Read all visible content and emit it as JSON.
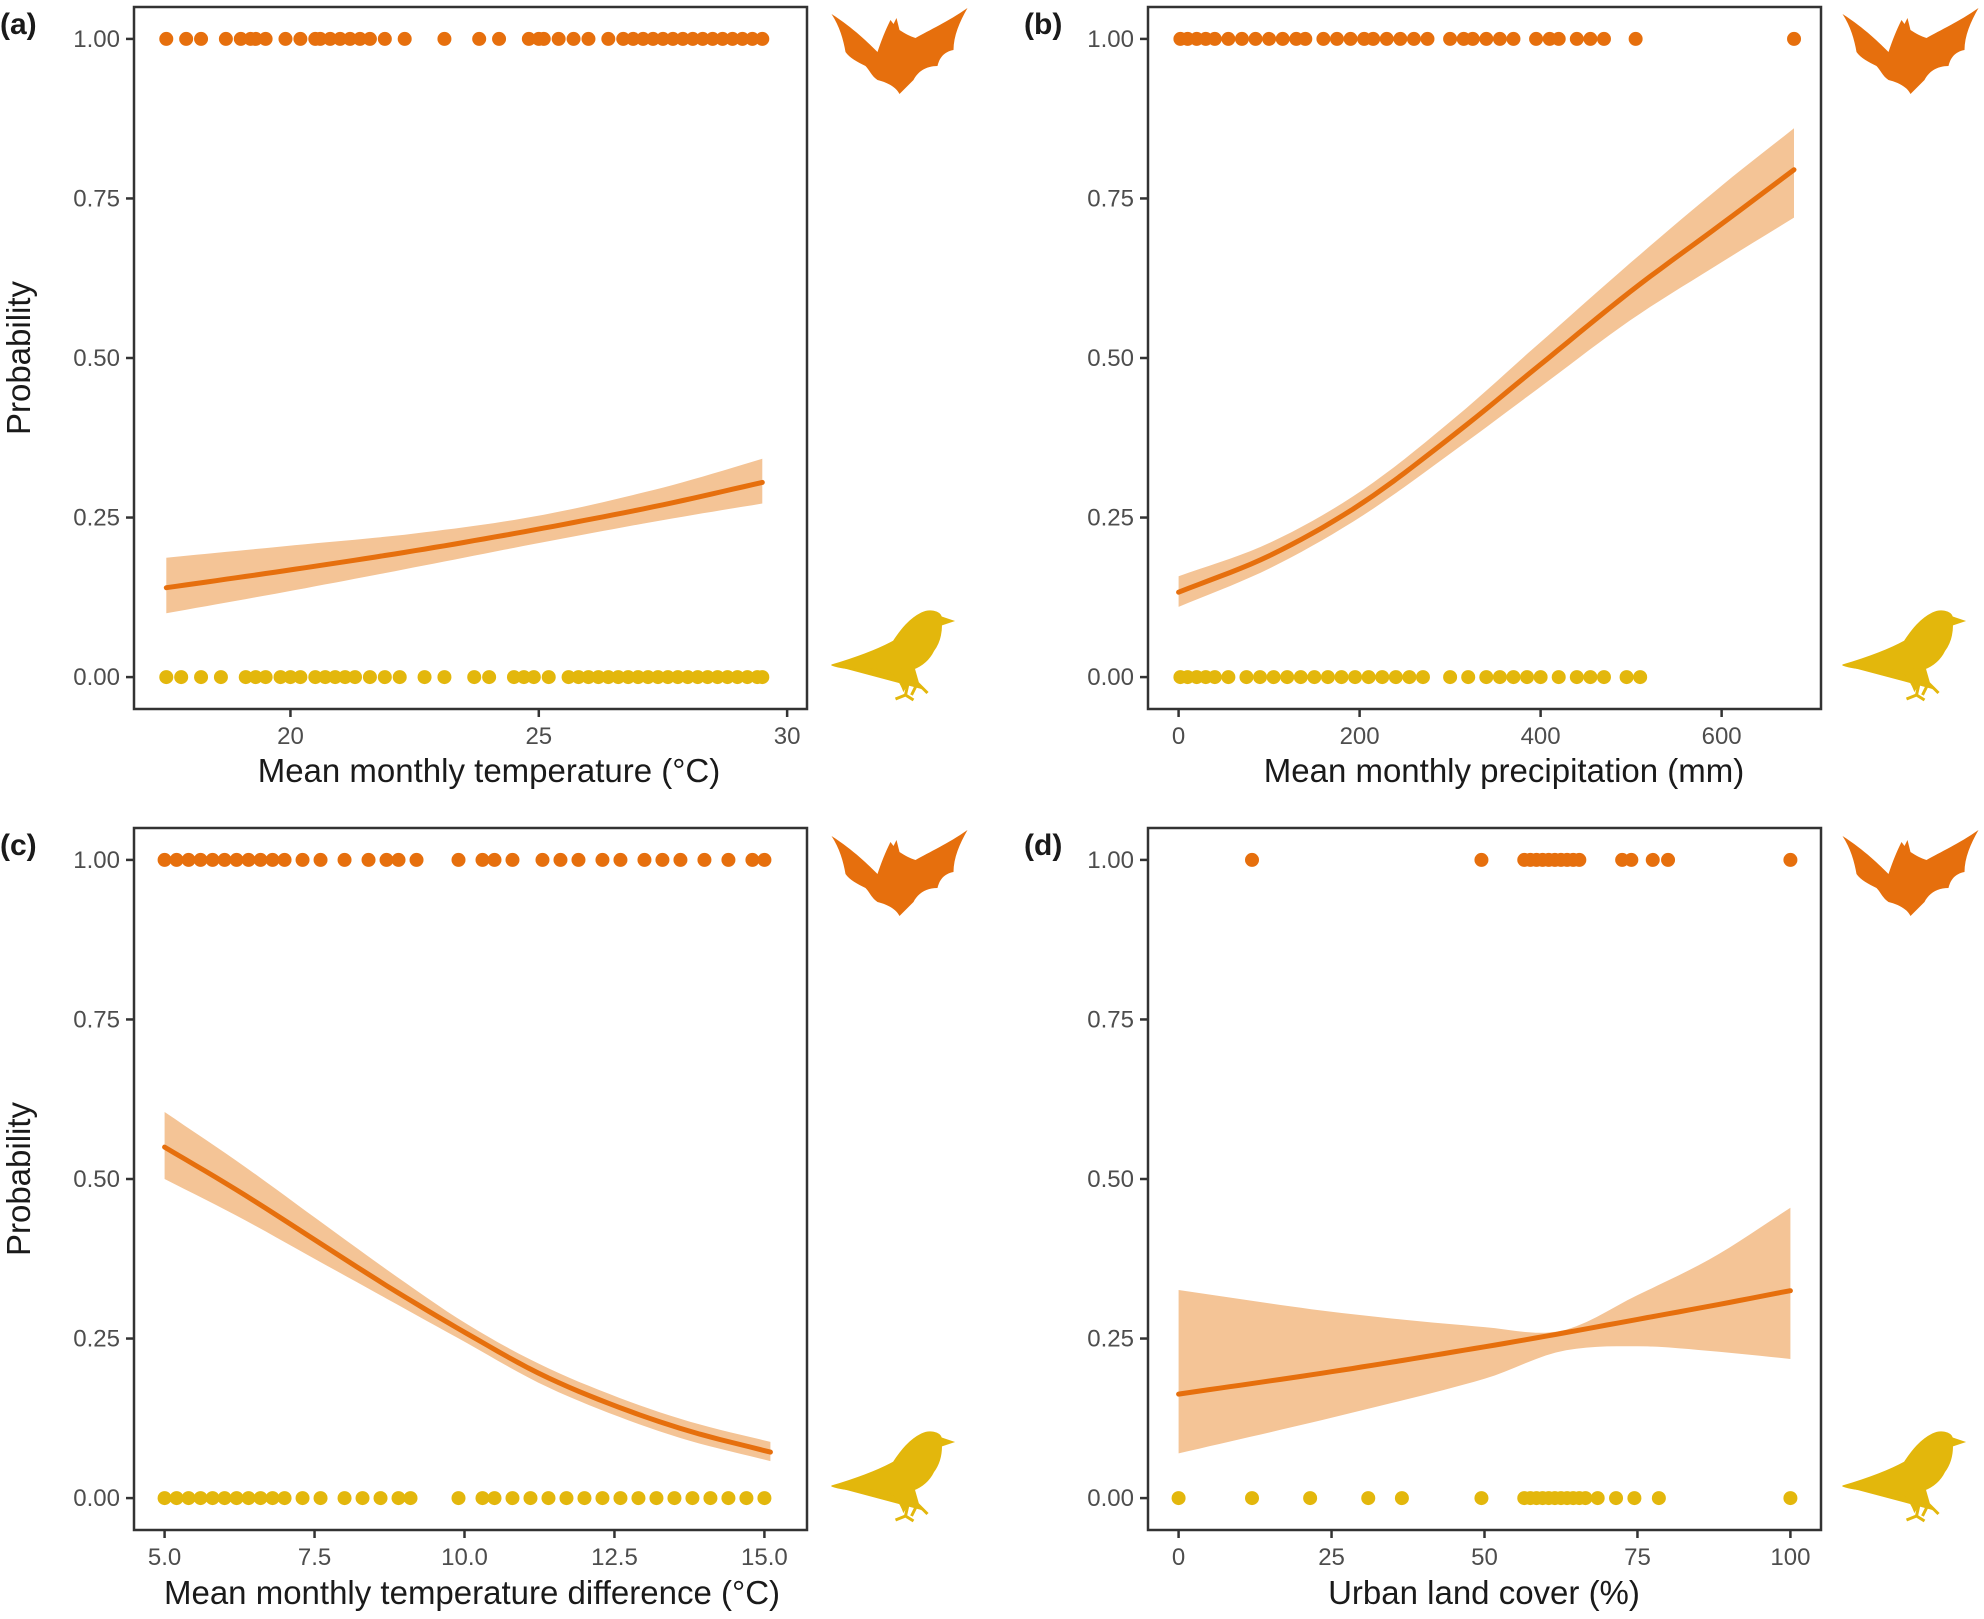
{
  "colors": {
    "bat": "#e66f0d",
    "bird": "#e3b70c",
    "ribbon": "#f4c496",
    "curve": "#e66f0d",
    "frame": "#333333"
  },
  "icons": {
    "top": "bat-silhouette-icon",
    "bottom": "bird-silhouette-icon"
  },
  "chart_data": [
    {
      "type": "scatter",
      "panel": "(a)",
      "xlabel": "Mean monthly temperature (°C)",
      "ylabel": "Probability",
      "xlim": [
        16.85,
        30.4
      ],
      "ylim": [
        -0.05,
        1.05
      ],
      "xticks": [
        20,
        25,
        30
      ],
      "xtick_labels": [
        "20",
        "25",
        "30"
      ],
      "yticks": [
        0,
        0.25,
        0.5,
        0.75,
        1
      ],
      "ytick_labels": [
        "0.00",
        "0.25",
        "0.50",
        "0.75",
        "1.00"
      ],
      "grid": false,
      "series": [
        {
          "values_y": 1,
          "x": [
            17.5,
            17.9,
            18.2,
            18.7,
            19.0,
            19.2,
            19.3,
            19.5,
            19.9,
            20.2,
            20.5,
            20.6,
            20.8,
            21.0,
            21.2,
            21.4,
            21.6,
            21.9,
            22.3,
            23.1,
            23.8,
            24.2,
            24.8,
            25.0,
            25.1,
            25.4,
            25.7,
            26.0,
            26.4,
            26.7,
            26.9,
            27.1,
            27.3,
            27.5,
            27.7,
            27.9,
            28.1,
            28.3,
            28.5,
            28.7,
            28.9,
            29.1,
            29.3,
            29.5
          ]
        },
        {
          "values_y": 0,
          "x": [
            17.5,
            17.8,
            18.2,
            18.6,
            19.1,
            19.3,
            19.5,
            19.8,
            20.0,
            20.2,
            20.5,
            20.7,
            20.9,
            21.1,
            21.3,
            21.6,
            21.9,
            22.2,
            22.7,
            23.1,
            23.7,
            24.0,
            24.5,
            24.7,
            24.9,
            25.2,
            25.6,
            25.8,
            26.0,
            26.2,
            26.4,
            26.6,
            26.8,
            27.0,
            27.2,
            27.4,
            27.6,
            27.8,
            28.0,
            28.2,
            28.4,
            28.6,
            28.8,
            29.0,
            29.2,
            29.4,
            29.5
          ]
        }
      ],
      "fit": {
        "x": [
          17.5,
          20,
          22.5,
          25,
          27.5,
          29.5
        ],
        "y": [
          0.14,
          0.168,
          0.198,
          0.232,
          0.27,
          0.305
        ],
        "lower": [
          0.1,
          0.135,
          0.172,
          0.21,
          0.246,
          0.272
        ],
        "upper": [
          0.187,
          0.206,
          0.225,
          0.253,
          0.297,
          0.342
        ]
      }
    },
    {
      "type": "scatter",
      "panel": "(b)",
      "xlabel": "Mean monthly precipitation (mm)",
      "ylabel": "",
      "xlim": [
        -33.8,
        709.8
      ],
      "ylim": [
        -0.05,
        1.05
      ],
      "xticks": [
        0,
        200,
        400,
        600
      ],
      "xtick_labels": [
        "0",
        "200",
        "400",
        "600"
      ],
      "yticks": [
        0,
        0.25,
        0.5,
        0.75,
        1
      ],
      "ytick_labels": [
        "0.00",
        "0.25",
        "0.50",
        "0.75",
        "1.00"
      ],
      "grid": false,
      "series": [
        {
          "values_y": 1,
          "x": [
            2,
            10,
            20,
            30,
            40,
            55,
            70,
            85,
            100,
            115,
            130,
            140,
            160,
            175,
            190,
            205,
            215,
            230,
            245,
            260,
            275,
            300,
            315,
            325,
            340,
            355,
            370,
            395,
            410,
            420,
            440,
            455,
            470,
            505,
            680
          ]
        },
        {
          "values_y": 0,
          "x": [
            2,
            10,
            20,
            30,
            40,
            55,
            75,
            90,
            105,
            120,
            135,
            150,
            165,
            180,
            195,
            210,
            225,
            240,
            255,
            270,
            300,
            320,
            340,
            355,
            370,
            385,
            400,
            420,
            440,
            455,
            470,
            495,
            510
          ]
        }
      ],
      "fit": {
        "x": [
          0,
          100,
          200,
          300,
          400,
          500,
          600,
          680
        ],
        "y": [
          0.133,
          0.19,
          0.27,
          0.375,
          0.49,
          0.605,
          0.71,
          0.795
        ],
        "lower": [
          0.11,
          0.17,
          0.25,
          0.35,
          0.455,
          0.56,
          0.65,
          0.72
        ],
        "upper": [
          0.158,
          0.21,
          0.29,
          0.4,
          0.525,
          0.65,
          0.77,
          0.86
        ]
      }
    },
    {
      "type": "scatter",
      "panel": "(c)",
      "xlabel": "Mean monthly temperature difference (°C)",
      "ylabel": "Probability",
      "xlim": [
        4.49,
        15.71
      ],
      "ylim": [
        -0.05,
        1.05
      ],
      "xticks": [
        5,
        7.5,
        10,
        12.5,
        15
      ],
      "xtick_labels": [
        "5.0",
        "7.5",
        "10.0",
        "12.5",
        "15.0"
      ],
      "yticks": [
        0,
        0.25,
        0.5,
        0.75,
        1
      ],
      "ytick_labels": [
        "0.00",
        "0.25",
        "0.50",
        "0.75",
        "1.00"
      ],
      "grid": false,
      "series": [
        {
          "values_y": 1,
          "x": [
            5.0,
            5.2,
            5.4,
            5.6,
            5.8,
            6.0,
            6.2,
            6.4,
            6.6,
            6.8,
            7.0,
            7.3,
            7.6,
            8.0,
            8.4,
            8.7,
            8.9,
            9.2,
            9.9,
            10.3,
            10.5,
            10.8,
            11.3,
            11.6,
            11.9,
            12.3,
            12.6,
            13.0,
            13.3,
            13.6,
            14.0,
            14.4,
            14.8,
            15.0
          ]
        },
        {
          "values_y": 0,
          "x": [
            5.0,
            5.2,
            5.4,
            5.6,
            5.8,
            6.0,
            6.2,
            6.4,
            6.6,
            6.8,
            7.0,
            7.3,
            7.6,
            8.0,
            8.3,
            8.6,
            8.9,
            9.1,
            9.9,
            10.3,
            10.5,
            10.8,
            11.1,
            11.4,
            11.7,
            12.0,
            12.3,
            12.6,
            12.9,
            13.2,
            13.5,
            13.8,
            14.1,
            14.4,
            14.7,
            15.0
          ]
        }
      ],
      "fit": {
        "x": [
          5,
          6.25,
          7.5,
          8.75,
          10,
          11.25,
          12.5,
          13.75,
          15.1
        ],
        "y": [
          0.55,
          0.48,
          0.405,
          0.33,
          0.26,
          0.195,
          0.145,
          0.105,
          0.072
        ],
        "lower": [
          0.5,
          0.44,
          0.375,
          0.31,
          0.245,
          0.18,
          0.13,
          0.09,
          0.058
        ],
        "upper": [
          0.605,
          0.525,
          0.44,
          0.355,
          0.275,
          0.21,
          0.16,
          0.12,
          0.088
        ]
      }
    },
    {
      "type": "scatter",
      "panel": "(d)",
      "xlabel": "Urban land cover (%)",
      "ylabel": "",
      "xlim": [
        -5,
        105
      ],
      "ylim": [
        -0.05,
        1.05
      ],
      "xticks": [
        0,
        25,
        50,
        75,
        100
      ],
      "xtick_labels": [
        "0",
        "25",
        "50",
        "75",
        "100"
      ],
      "yticks": [
        0,
        0.25,
        0.5,
        0.75,
        1
      ],
      "ytick_labels": [
        "0.00",
        "0.25",
        "0.50",
        "0.75",
        "1.00"
      ],
      "grid": false,
      "series": [
        {
          "values_y": 1,
          "x": [
            12,
            49.5,
            56.5,
            57.5,
            58.5,
            59.5,
            60.5,
            61.5,
            62.5,
            63.5,
            64.5,
            65.5,
            72.5,
            74.0,
            77.5,
            80.0,
            100
          ]
        },
        {
          "values_y": 0,
          "x": [
            0,
            12,
            21.5,
            31,
            36.5,
            49.5,
            56.5,
            57.5,
            58.5,
            59.5,
            60.5,
            61.5,
            62.5,
            63.5,
            64.5,
            65.5,
            66.5,
            68.5,
            71.5,
            74.5,
            78.5,
            100
          ]
        }
      ],
      "fit": {
        "x": [
          0,
          25,
          50,
          62.5,
          75,
          87.5,
          100
        ],
        "y": [
          0.163,
          0.198,
          0.237,
          0.258,
          0.28,
          0.302,
          0.325
        ],
        "lower": [
          0.07,
          0.126,
          0.187,
          0.23,
          0.238,
          0.23,
          0.218
        ],
        "upper": [
          0.326,
          0.292,
          0.268,
          0.262,
          0.318,
          0.378,
          0.455
        ]
      }
    }
  ]
}
